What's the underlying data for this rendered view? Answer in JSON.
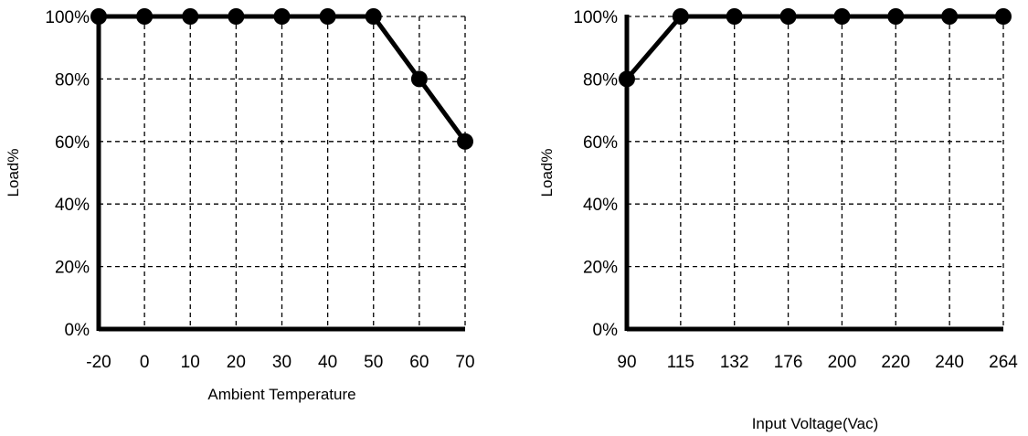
{
  "chart_data": [
    {
      "type": "line",
      "xlabel": "Ambient Temperature",
      "ylabel": "Load%",
      "x_tick_labels": [
        "-20",
        "0",
        "10",
        "20",
        "30",
        "40",
        "50",
        "60",
        "70"
      ],
      "y_tick_labels": [
        "0%",
        "20%",
        "40%",
        "60%",
        "80%",
        "100%"
      ],
      "ylim": [
        0,
        100
      ],
      "y_unit": "%",
      "grid": true,
      "grid_style": "dashed",
      "series": [
        {
          "x": [
            "-20",
            "0",
            "10",
            "20",
            "30",
            "40",
            "50",
            "60",
            "70"
          ],
          "y": [
            100,
            100,
            100,
            100,
            100,
            100,
            100,
            80,
            60
          ]
        }
      ],
      "colors": {
        "line": "#000000",
        "grid": "#000000"
      }
    },
    {
      "type": "line",
      "xlabel": "Input Voltage(Vac)",
      "ylabel": "Load%",
      "x_tick_labels": [
        "90",
        "115",
        "132",
        "176",
        "200",
        "220",
        "240",
        "264"
      ],
      "y_tick_labels": [
        "0%",
        "20%",
        "40%",
        "60%",
        "80%",
        "100%"
      ],
      "ylim": [
        0,
        100
      ],
      "y_unit": "%",
      "grid": true,
      "grid_style": "dashed",
      "series": [
        {
          "x": [
            "90",
            "115",
            "132",
            "176",
            "200",
            "220",
            "240",
            "264"
          ],
          "y": [
            80,
            100,
            100,
            100,
            100,
            100,
            100,
            100
          ]
        }
      ],
      "colors": {
        "line": "#000000",
        "grid": "#000000"
      }
    }
  ]
}
